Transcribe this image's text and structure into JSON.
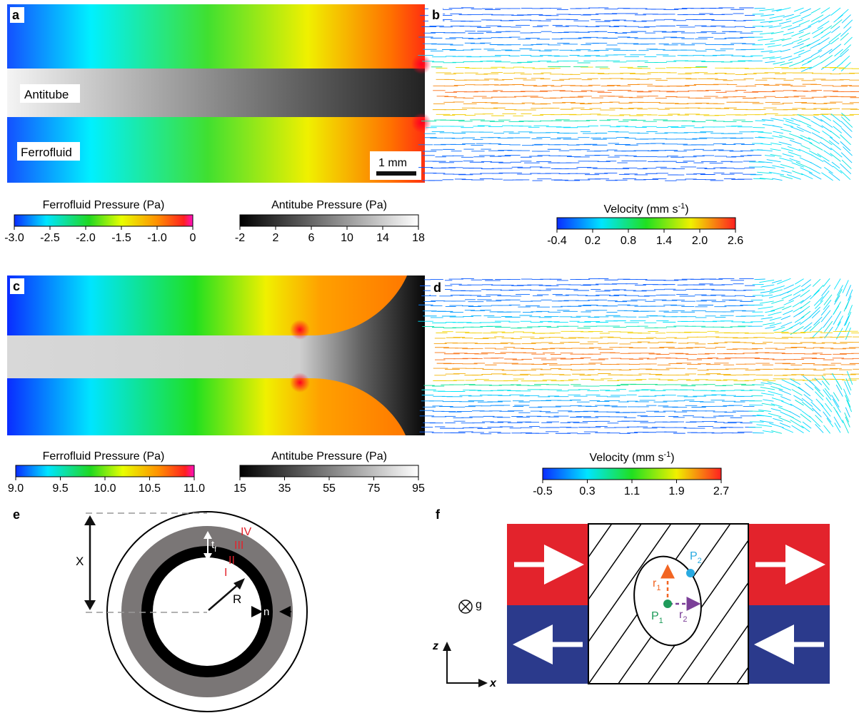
{
  "panels": {
    "a": {
      "letter": "a",
      "antitube_label": "Antitube",
      "ferrofluid_label": "Ferrofluid",
      "scalebar_label": "1 mm"
    },
    "b": {
      "letter": "b"
    },
    "c": {
      "letter": "c"
    },
    "d": {
      "letter": "d"
    },
    "e": {
      "letter": "e",
      "label_x": "X",
      "label_r": "R",
      "label_n": "n",
      "label_t": "t",
      "label_t_sub": "f",
      "region_labels": [
        "I",
        "II",
        "III",
        "IV"
      ]
    },
    "f": {
      "letter": "f",
      "label_g": "g",
      "label_z": "z",
      "label_x": "x",
      "label_p1": "P",
      "label_p1_sub": "1",
      "label_p2": "P",
      "label_p2_sub": "2",
      "label_r1": "r",
      "label_r1_sub": "1",
      "label_r2": "r",
      "label_r2_sub": "2"
    }
  },
  "colorbars": {
    "ab_ferro": {
      "title": "Ferrofluid Pressure (Pa)",
      "ticks": [
        "-3.0",
        "-2.5",
        "-2.0",
        "-1.5",
        "-1.0",
        "0"
      ]
    },
    "ab_anti": {
      "title": "Antitube Pressure (Pa)",
      "ticks": [
        "-2",
        "2",
        "6",
        "10",
        "14",
        "18"
      ]
    },
    "ab_vel": {
      "title": "Velocity (mm s",
      "title_sup": "-1",
      "title_end": ")",
      "ticks": [
        "-0.4",
        "0.2",
        "0.8",
        "1.4",
        "2.0",
        "2.6"
      ]
    },
    "cd_ferro": {
      "title": "Ferrofluid Pressure (Pa)",
      "ticks": [
        "9.0",
        "9.5",
        "10.0",
        "10.5",
        "11.0"
      ]
    },
    "cd_anti": {
      "title": "Antitube Pressure (Pa)",
      "ticks": [
        "15",
        "35",
        "55",
        "75",
        "95"
      ]
    },
    "cd_vel": {
      "title": "Velocity (mm s",
      "title_sup": "-1",
      "title_end": ")",
      "ticks": [
        "-0.5",
        "0.3",
        "1.1",
        "1.9",
        "2.7"
      ]
    }
  },
  "colors": {
    "magnet_red": "#e3232c",
    "magnet_blue": "#2b3a8c",
    "ring_gray": "#7a7676",
    "region_label_red": "#e3232c",
    "p1_green": "#1e9b5a",
    "p2_cyan": "#29aae1",
    "r1_orange": "#f26522",
    "r2_purple": "#7b3f98"
  }
}
